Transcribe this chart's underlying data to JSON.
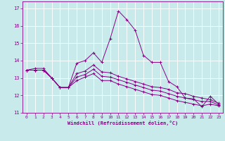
{
  "title": "",
  "xlabel": "Windchill (Refroidissement éolien,°C)",
  "background_color": "#c8eaea",
  "grid_color": "#ffffff",
  "line_color": "#880088",
  "xlim": [
    -0.5,
    23.5
  ],
  "ylim": [
    11,
    17.4
  ],
  "xticks": [
    0,
    1,
    2,
    3,
    4,
    5,
    6,
    7,
    8,
    9,
    10,
    11,
    12,
    13,
    14,
    15,
    16,
    17,
    18,
    19,
    20,
    21,
    22,
    23
  ],
  "yticks": [
    11,
    12,
    13,
    14,
    15,
    16,
    17
  ],
  "series1": [
    13.45,
    13.55,
    13.55,
    13.0,
    12.45,
    12.45,
    13.85,
    14.0,
    14.45,
    13.9,
    15.25,
    16.85,
    16.35,
    15.75,
    14.3,
    13.9,
    13.9,
    12.8,
    12.5,
    11.85,
    11.8,
    11.35,
    11.95,
    11.5
  ],
  "series2": [
    13.45,
    13.45,
    13.45,
    13.0,
    12.45,
    12.45,
    13.25,
    13.4,
    13.75,
    13.35,
    13.3,
    13.1,
    12.95,
    12.8,
    12.65,
    12.5,
    12.45,
    12.35,
    12.15,
    12.1,
    11.95,
    11.85,
    11.75,
    11.55
  ],
  "series3": [
    13.45,
    13.45,
    13.45,
    13.0,
    12.45,
    12.45,
    13.05,
    13.2,
    13.5,
    13.1,
    13.05,
    12.9,
    12.75,
    12.6,
    12.45,
    12.3,
    12.25,
    12.1,
    11.95,
    11.85,
    11.75,
    11.65,
    11.65,
    11.45
  ],
  "series4": [
    13.45,
    13.45,
    13.45,
    13.0,
    12.45,
    12.45,
    12.85,
    13.05,
    13.25,
    12.85,
    12.85,
    12.65,
    12.5,
    12.35,
    12.2,
    12.05,
    12.0,
    11.85,
    11.7,
    11.6,
    11.5,
    11.4,
    11.5,
    11.4
  ]
}
